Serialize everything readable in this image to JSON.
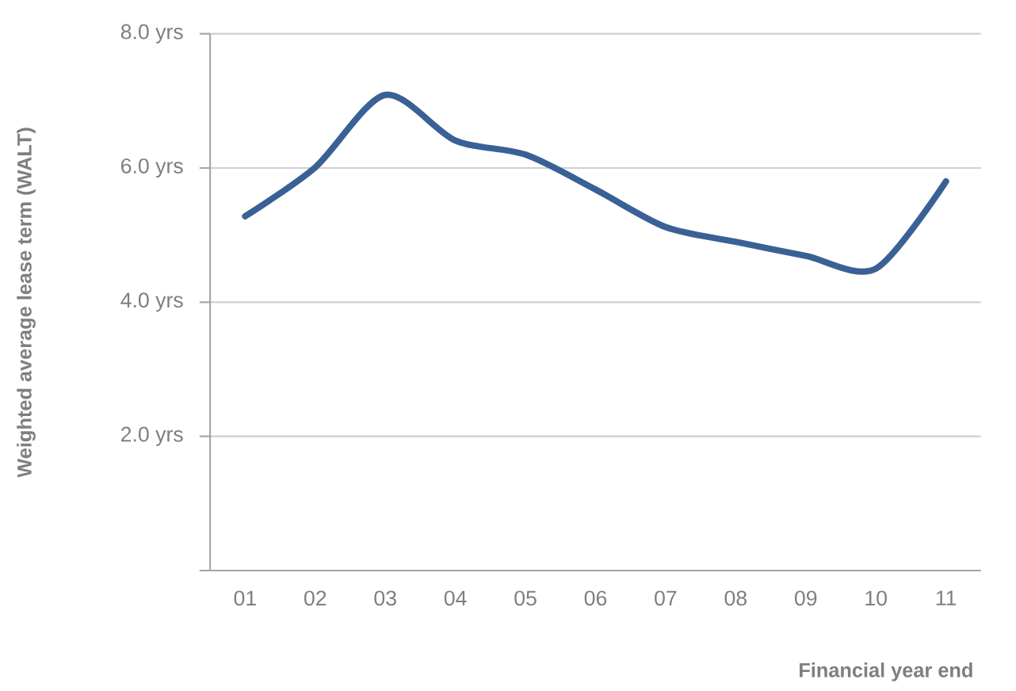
{
  "chart_data": {
    "type": "line",
    "xlabel": "Financial year end",
    "ylabel": "Weighted average lease term (WALT)",
    "categories": [
      "01",
      "02",
      "03",
      "04",
      "05",
      "06",
      "07",
      "08",
      "09",
      "10",
      "11"
    ],
    "series": [
      {
        "color": "#3a6195",
        "values": [
          5.28,
          6.01,
          7.09,
          6.41,
          6.2,
          5.68,
          5.12,
          4.9,
          4.69,
          4.5,
          5.8
        ]
      }
    ],
    "ylim": [
      0,
      8
    ],
    "yticks": [
      {
        "value": 0,
        "label": null
      },
      {
        "value": 2,
        "label": "2.0 yrs"
      },
      {
        "value": 4,
        "label": "4.0 yrs"
      },
      {
        "value": 6,
        "label": "6.0 yrs"
      },
      {
        "value": 8,
        "label": "8.0 yrs"
      }
    ],
    "grid": "y",
    "marker": "none",
    "line_style": "solid"
  }
}
